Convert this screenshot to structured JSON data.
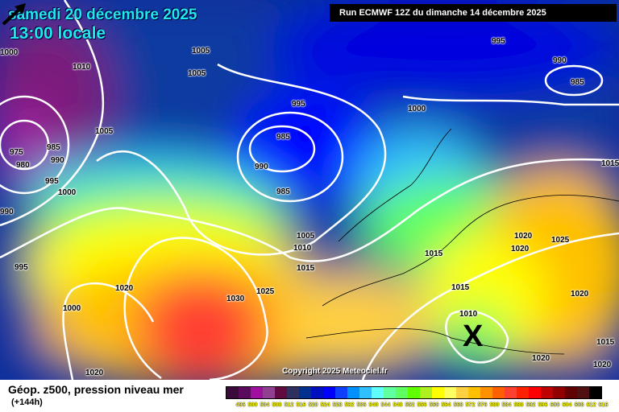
{
  "header": {
    "date": "samedi 20 décembre 2025",
    "time": "13:00 locale",
    "run": "Run ECMWF 12Z du dimanche 14 décembre 2025"
  },
  "footer": {
    "copyright": "Copyright 2025 Meteociel.fr",
    "title": "Géop. z500, pression niveau mer",
    "lead": "(+144h)"
  },
  "legend": {
    "labels": [
      "496",
      "500",
      "504",
      "508",
      "512",
      "516",
      "520",
      "524",
      "528",
      "532",
      "536",
      "540",
      "544",
      "548",
      "552",
      "556",
      "560",
      "564",
      "568",
      "572",
      "576",
      "580",
      "584",
      "588",
      "592",
      "596",
      "600",
      "604",
      "608",
      "612",
      "616"
    ],
    "colors": [
      "#3a0a3a",
      "#5a0a5a",
      "#a010a0",
      "#904090",
      "#600a40",
      "#303060",
      "#003090",
      "#0010c0",
      "#0000ff",
      "#1040ff",
      "#0090ff",
      "#30c0ff",
      "#60ffff",
      "#60ffa0",
      "#60ff60",
      "#60ff00",
      "#b0f020",
      "#ffff00",
      "#ffff60",
      "#ffd040",
      "#ffc000",
      "#ff9000",
      "#ff6000",
      "#ff4030",
      "#ff2000",
      "#ff0000",
      "#c00000",
      "#900000",
      "#600000",
      "#501010",
      "#000000"
    ]
  },
  "isobar_labels": [
    "1000",
    "995",
    "1005",
    "1005",
    "1010",
    "1005",
    "975",
    "985",
    "980",
    "990",
    "995",
    "1000",
    "990",
    "995",
    "985",
    "990",
    "985",
    "1000",
    "1015",
    "990",
    "985",
    "1005",
    "1010",
    "1015",
    "1015",
    "1020",
    "1020",
    "1025",
    "1015",
    "1020",
    "1025",
    "1030",
    "1020",
    "1000",
    "995",
    "1020",
    "1010",
    "1015",
    "1020",
    "1020"
  ],
  "markers": {
    "low_symbol": "X",
    "arrow": "arrow-northeast-icon"
  }
}
